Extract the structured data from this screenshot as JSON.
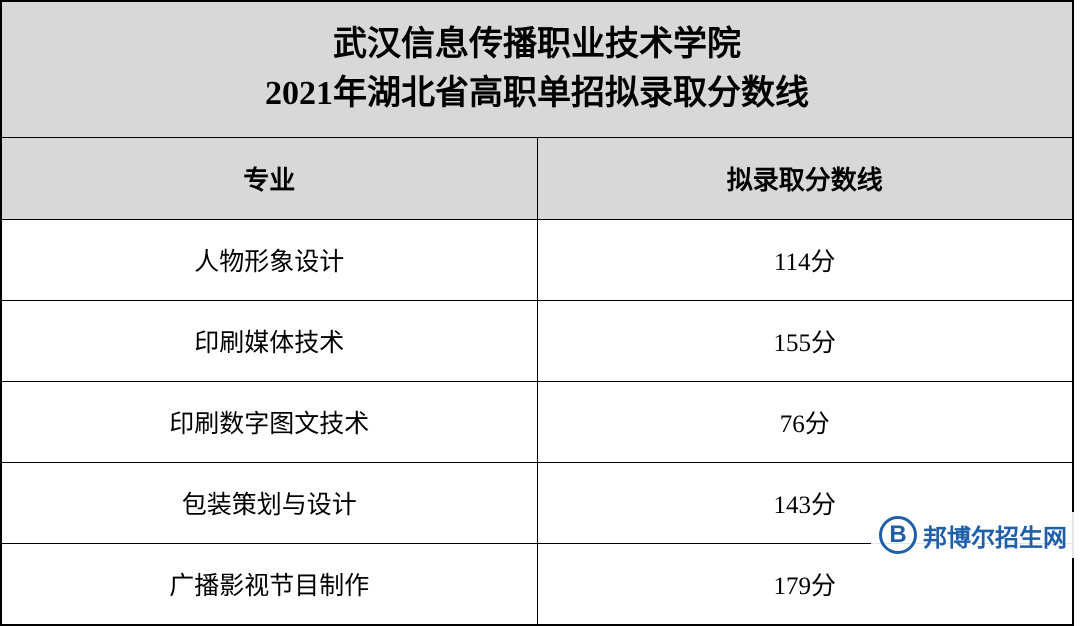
{
  "title": {
    "line1": "武汉信息传播职业技术学院",
    "line2": "2021年湖北省高职单招拟录取分数线"
  },
  "headers": {
    "major": "专业",
    "score": "拟录取分数线"
  },
  "rows": [
    {
      "major": "人物形象设计",
      "score": "114分"
    },
    {
      "major": "印刷媒体技术",
      "score": "155分"
    },
    {
      "major": "印刷数字图文技术",
      "score": "76分"
    },
    {
      "major": "包装策划与设计",
      "score": "143分"
    },
    {
      "major": "广播影视节目制作",
      "score": "179分"
    }
  ],
  "watermark": {
    "icon_letter": "B",
    "text": "邦博尔招生网",
    "icon_border_color": "#1e5fa8",
    "text_color": "#1e5fa8"
  },
  "styles": {
    "title_bg": "#d8d8d8",
    "header_bg": "#d8d8d8",
    "row_bg": "#ffffff",
    "border_color": "#000000",
    "title_fontsize": 34,
    "header_fontsize": 26,
    "cell_fontsize": 25
  }
}
